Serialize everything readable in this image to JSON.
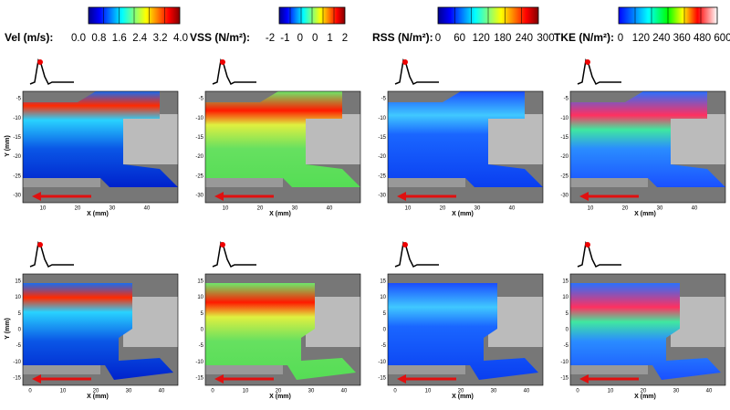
{
  "colorbars": [
    {
      "label": "Vel (m/s):",
      "ticks": [
        "0.0",
        "0.8",
        "1.6",
        "2.4",
        "3.2",
        "4.0"
      ]
    },
    {
      "label": "VSS (N/m²):",
      "ticks": [
        "-2",
        "-1",
        "0",
        "0",
        "1",
        "2"
      ]
    },
    {
      "label": "RSS (N/m²):",
      "ticks": [
        "0",
        "60",
        "120",
        "180",
        "240",
        "300"
      ]
    },
    {
      "label": "TKE (N/m²):",
      "ticks": [
        "0",
        "120",
        "240",
        "360",
        "480",
        "600"
      ]
    }
  ],
  "rows": [
    {
      "y_label": "Y (mm)",
      "x_label": "X (mm)",
      "yticks": [
        "-5",
        "-10",
        "-15",
        "-20",
        "-25",
        "-30"
      ],
      "xticks": [
        "10",
        "20",
        "30",
        "40"
      ]
    },
    {
      "y_label": "Y (mm)",
      "x_label": "X (mm)",
      "yticks": [
        "15",
        "10",
        "5",
        "0",
        "-5",
        "-10",
        "-15"
      ],
      "xticks": [
        "0",
        "10",
        "20",
        "30",
        "40"
      ]
    }
  ]
}
